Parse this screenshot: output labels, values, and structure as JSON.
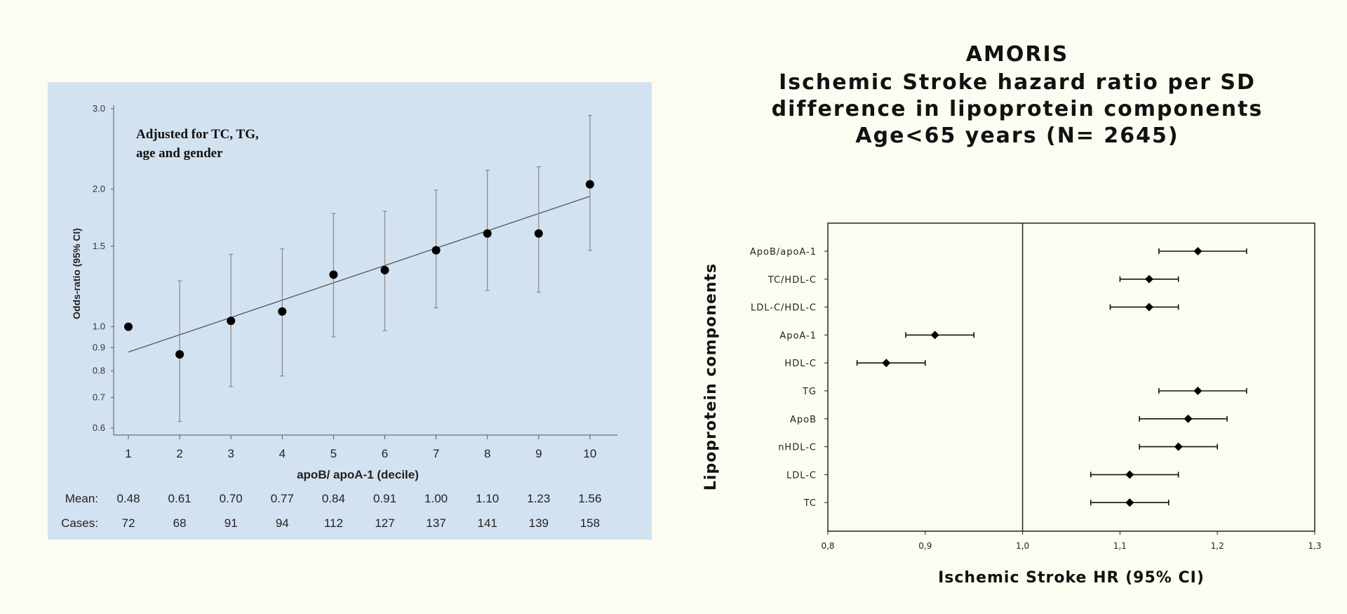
{
  "chart_data": [
    {
      "type": "scatter",
      "annotation": [
        "Adjusted for TC, TG,",
        "age and gender"
      ],
      "xlabel": "apoB/ apoA-1 (decile)",
      "ylabel": "Odds-ratio (95% CI)",
      "y_scale": "log",
      "ylim": [
        0.6,
        3.0
      ],
      "yticks": [
        "0.6",
        "0.7",
        "0.8",
        "0.9",
        "1.0",
        "1.5",
        "2.0",
        "3.0"
      ],
      "x": [
        "1",
        "2",
        "3",
        "4",
        "5",
        "6",
        "7",
        "8",
        "9",
        "10"
      ],
      "values": [
        1.0,
        0.87,
        1.03,
        1.08,
        1.3,
        1.33,
        1.47,
        1.6,
        1.6,
        2.05
      ],
      "ci_low": [
        null,
        0.62,
        0.74,
        0.78,
        0.95,
        0.98,
        1.1,
        1.2,
        1.19,
        1.47
      ],
      "ci_high": [
        null,
        1.26,
        1.44,
        1.48,
        1.77,
        1.79,
        1.99,
        2.2,
        2.24,
        2.9
      ],
      "trend_line": {
        "start": [
          1,
          0.88
        ],
        "end": [
          10,
          1.93
        ]
      },
      "table": {
        "rows": [
          {
            "label": "Mean:",
            "values": [
              "0.48",
              "0.61",
              "0.70",
              "0.77",
              "0.84",
              "0.91",
              "1.00",
              "1.10",
              "1.23",
              "1.56"
            ]
          },
          {
            "label": "Cases:",
            "values": [
              "72",
              "68",
              "91",
              "94",
              "112",
              "127",
              "137",
              "141",
              "139",
              "158"
            ]
          }
        ]
      },
      "colors": {
        "background": "#d3e2f1",
        "marker": "#000000"
      }
    },
    {
      "type": "scatter",
      "orientation": "horizontal-forest",
      "title": [
        "AMORIS",
        "Ischemic Stroke hazard ratio per SD",
        "difference in lipoprotein components",
        "Age<65 years (N= 2645)"
      ],
      "xlabel": "Ischemic Stroke HR (95% CI)",
      "ylabel": "Lipoprotein components",
      "xlim": [
        0.8,
        1.3
      ],
      "xticks": [
        "0,8",
        "0,9",
        "1,0",
        "1,1",
        "1,2",
        "1,3"
      ],
      "reference_line": 1.0,
      "categories": [
        "ApoB/apoA-1",
        "TC/HDL-C",
        "LDL-C/HDL-C",
        "ApoA-1",
        "HDL-C",
        "TG",
        "ApoB",
        "nHDL-C",
        "LDL-C",
        "TC"
      ],
      "values": [
        1.18,
        1.13,
        1.13,
        0.91,
        0.86,
        1.18,
        1.17,
        1.16,
        1.11,
        1.11
      ],
      "ci_low": [
        1.14,
        1.1,
        1.09,
        0.88,
        0.83,
        1.14,
        1.12,
        1.12,
        1.07,
        1.07
      ],
      "ci_high": [
        1.23,
        1.16,
        1.16,
        0.95,
        0.9,
        1.23,
        1.21,
        1.2,
        1.16,
        1.15
      ]
    }
  ]
}
